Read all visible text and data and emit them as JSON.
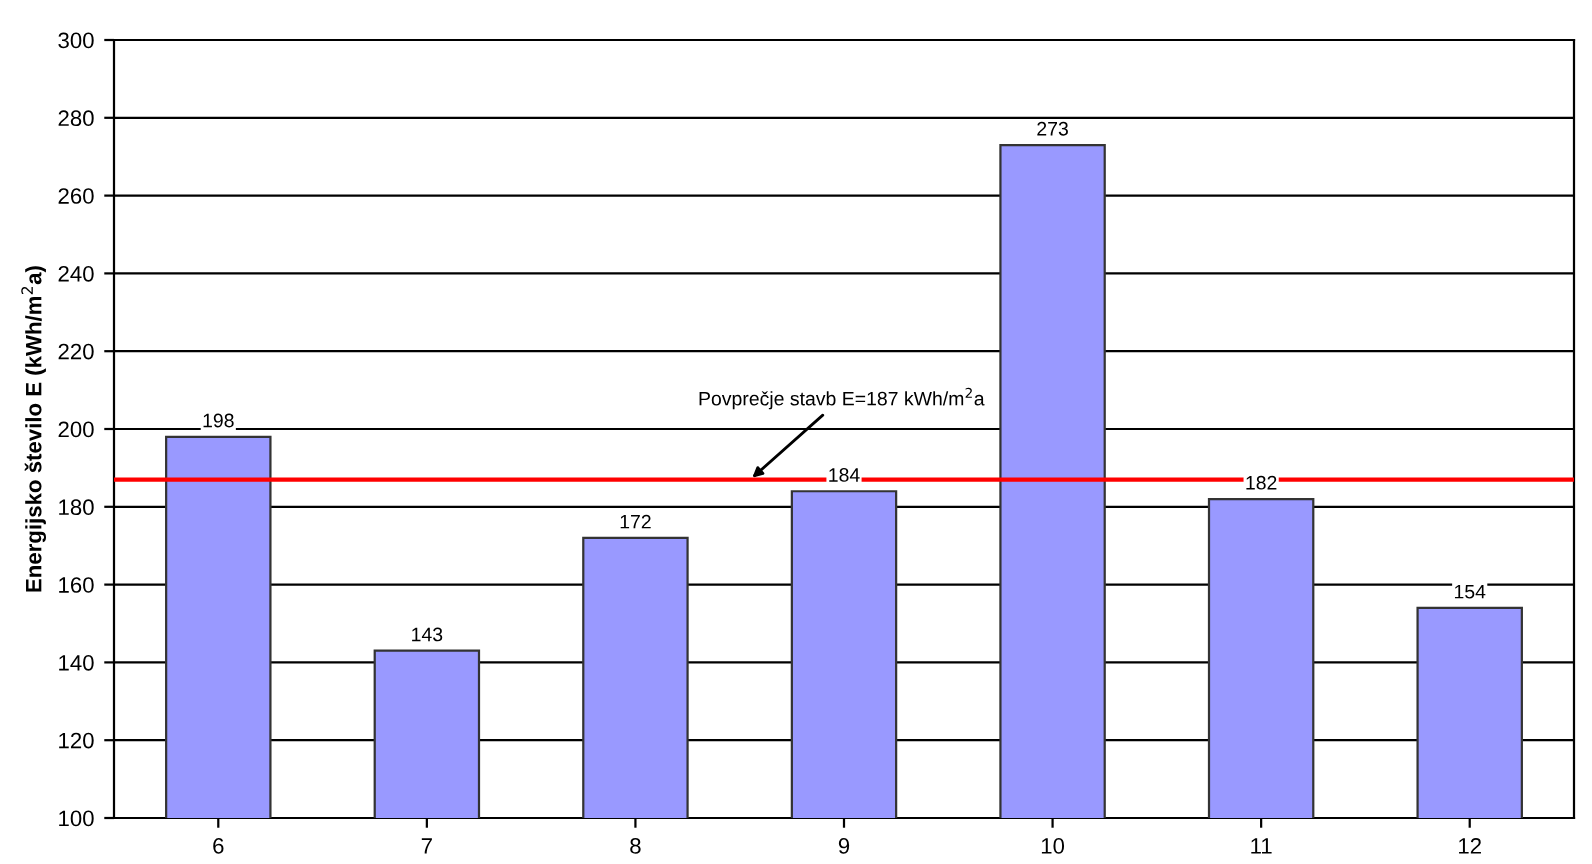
{
  "chart_data": {
    "type": "bar",
    "ylabel": "Energijsko število E (kWh/m$^{2}$a)",
    "categories": [
      "6",
      "7",
      "8",
      "9",
      "10",
      "11",
      "12"
    ],
    "values": [
      198,
      143,
      172,
      184,
      273,
      182,
      154
    ],
    "color": "#9999ff",
    "ylim": [
      100,
      300
    ],
    "yticks": [
      100,
      120,
      140,
      160,
      180,
      200,
      220,
      240,
      260,
      280,
      300
    ],
    "grid": "y",
    "data_labels": true,
    "ref_lines": [
      {
        "axis": "y",
        "value": 187,
        "label": "Povprečje stavb E=187 kWh/m$^{2}$a",
        "color": "#ff0000"
      }
    ]
  }
}
